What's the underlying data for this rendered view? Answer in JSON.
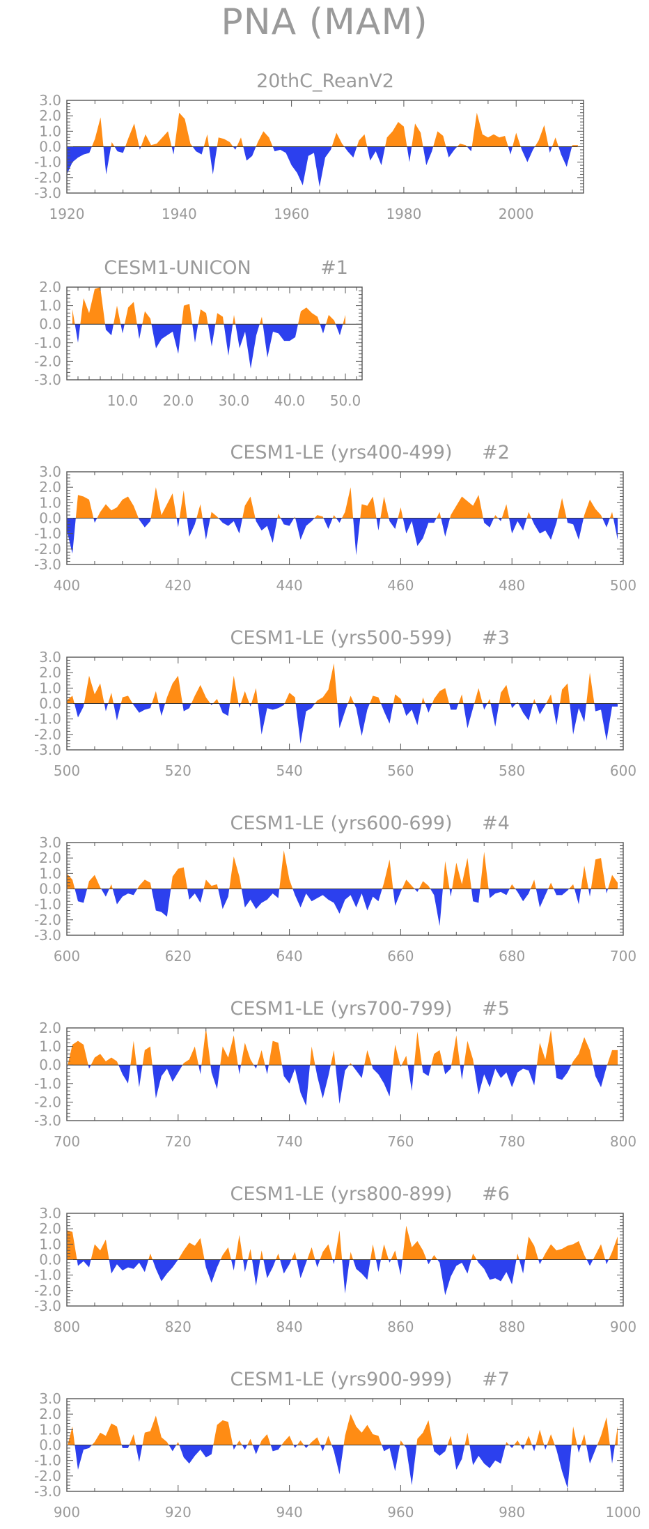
{
  "page": {
    "title": "PNA (MAM)"
  },
  "colors": {
    "positive": "#ff8c14",
    "negative": "#2c40ee",
    "text": "#9a9a9a",
    "axis": "#555555"
  },
  "chart_data": [
    {
      "type": "area",
      "title": "20thC_ReanV2",
      "tag": "",
      "x_start": 1920,
      "xlim": [
        1920,
        2012
      ],
      "ylim": [
        -3.0,
        3.0
      ],
      "xticks": [
        1920,
        1940,
        1960,
        1980,
        2000
      ],
      "xtick_labels": [
        "1920",
        "1940",
        "1960",
        "1980",
        "2000"
      ],
      "yticks": [
        3.0,
        2.0,
        1.0,
        0.0,
        -1.0,
        -2.0,
        -3.0
      ],
      "ytick_labels": [
        "3.0",
        "2.0",
        "1.0",
        "0.0",
        "-1.0",
        "-2.0",
        "-3.0"
      ],
      "values": [
        -1.8,
        -1.0,
        -0.7,
        -0.5,
        -0.4,
        0.5,
        1.9,
        -1.8,
        0.3,
        -0.3,
        -0.4,
        0.6,
        1.5,
        -0.2,
        0.8,
        0.1,
        0.2,
        0.6,
        1.0,
        -0.5,
        2.2,
        1.8,
        0.2,
        -0.3,
        -0.5,
        0.8,
        -1.8,
        0.6,
        0.5,
        0.3,
        -0.2,
        0.6,
        -0.9,
        -0.6,
        0.3,
        1.0,
        0.6,
        -0.3,
        -0.2,
        -0.4,
        -1.2,
        -1.7,
        -2.5,
        -0.6,
        -0.4,
        -2.6,
        -0.7,
        -0.2,
        0.9,
        0.2,
        -0.3,
        -0.7,
        0.4,
        0.8,
        -0.9,
        -0.3,
        -1.2,
        0.6,
        1.0,
        1.6,
        1.3,
        -1.0,
        1.5,
        0.9,
        -1.2,
        -0.3,
        1.0,
        0.7,
        -0.7,
        -0.2,
        0.2,
        0.1,
        -0.3,
        2.2,
        0.8,
        0.6,
        0.8,
        0.6,
        0.7,
        -0.5,
        0.9,
        -0.2,
        -1.0,
        -0.2,
        0.4,
        1.4,
        -0.4,
        0.6,
        -0.5,
        -1.3,
        0.1,
        0.1
      ]
    },
    {
      "type": "area",
      "title": "CESM1-UNICON",
      "tag": "#1",
      "x_start": 1,
      "xlim": [
        0,
        53
      ],
      "ylim": [
        -3.0,
        2.0
      ],
      "xticks": [
        10,
        20,
        30,
        40,
        50
      ],
      "xtick_labels": [
        "10.0",
        "20.0",
        "30.0",
        "40.0",
        "50.0"
      ],
      "yticks": [
        2.0,
        1.0,
        0.0,
        -1.0,
        -2.0,
        -3.0
      ],
      "ytick_labels": [
        "2.0",
        "1.0",
        "0.0",
        "-1.0",
        "-2.0",
        "-3.0"
      ],
      "values": [
        0.8,
        -1.0,
        1.4,
        0.6,
        1.9,
        2.0,
        -0.3,
        -0.6,
        1.0,
        -0.5,
        0.9,
        1.2,
        -0.8,
        0.7,
        0.3,
        -1.3,
        -0.8,
        -0.6,
        -0.4,
        -1.6,
        1.0,
        1.1,
        -1.0,
        0.8,
        0.6,
        -1.2,
        0.6,
        0.4,
        -1.7,
        0.5,
        -1.3,
        -0.4,
        -2.4,
        -0.6,
        0.4,
        -1.8,
        -0.4,
        -0.5,
        -0.9,
        -0.9,
        -0.7,
        0.7,
        0.9,
        0.6,
        0.4,
        -0.5,
        0.5,
        0.2,
        -0.6,
        0.5
      ]
    },
    {
      "type": "area",
      "title": "CESM1-LE (yrs400-499)",
      "tag": "#2",
      "x_start": 400,
      "xlim": [
        400,
        500
      ],
      "ylim": [
        -3.0,
        3.0
      ],
      "xticks": [
        400,
        420,
        440,
        460,
        480,
        500
      ],
      "xtick_labels": [
        "400",
        "420",
        "440",
        "460",
        "480",
        "500"
      ],
      "yticks": [
        3.0,
        2.0,
        1.0,
        0.0,
        -1.0,
        -2.0,
        -3.0
      ],
      "ytick_labels": [
        "3.0",
        "2.0",
        "1.0",
        "0.0",
        "-1.0",
        "-2.0",
        "-3.0"
      ],
      "values": [
        -0.8,
        -2.3,
        1.5,
        1.4,
        1.2,
        -0.3,
        0.4,
        0.9,
        0.5,
        0.7,
        1.2,
        1.4,
        0.8,
        -0.1,
        -0.6,
        -0.2,
        2.0,
        0.2,
        0.9,
        1.6,
        -0.6,
        1.8,
        -1.2,
        -0.4,
        0.9,
        -1.4,
        0.4,
        0.1,
        -0.3,
        -0.5,
        -0.2,
        -1.0,
        0.8,
        1.4,
        -0.2,
        -0.8,
        -0.5,
        -1.6,
        0.3,
        -0.4,
        -0.5,
        0.1,
        -1.4,
        -0.5,
        -0.2,
        0.2,
        0.1,
        -0.7,
        0.2,
        -0.3,
        0.4,
        2.0,
        -2.4,
        0.9,
        0.8,
        1.4,
        -0.8,
        1.4,
        -0.2,
        -0.7,
        0.7,
        -1.0,
        -0.2,
        -1.8,
        -1.3,
        -0.3,
        -0.3,
        0.4,
        -1.2,
        0.2,
        0.8,
        1.4,
        1.1,
        0.8,
        1.5,
        -0.3,
        -0.6,
        0.2,
        -0.2,
        0.9,
        -1.0,
        -0.2,
        -0.8,
        0.4,
        -0.4,
        -1.0,
        -0.8,
        -1.4,
        -0.3,
        1.3,
        -0.3,
        -0.4,
        -1.4,
        0.2,
        1.2,
        0.6,
        0.2,
        -0.6,
        0.4,
        -1.4
      ]
    },
    {
      "type": "area",
      "title": "CESM1-LE (yrs500-599)",
      "tag": "#3",
      "x_start": 500,
      "xlim": [
        500,
        600
      ],
      "ylim": [
        -3.0,
        3.0
      ],
      "xticks": [
        500,
        520,
        540,
        560,
        580,
        600
      ],
      "xtick_labels": [
        "500",
        "520",
        "540",
        "560",
        "580",
        "600"
      ],
      "yticks": [
        3.0,
        2.0,
        1.0,
        0.0,
        -1.0,
        -2.0,
        -3.0
      ],
      "ytick_labels": [
        "3.0",
        "2.0",
        "1.0",
        "0.0",
        "-1.0",
        "-2.0",
        "-3.0"
      ],
      "values": [
        0.2,
        0.5,
        -0.9,
        -0.2,
        1.8,
        0.6,
        1.3,
        -0.5,
        0.7,
        -1.1,
        0.4,
        0.5,
        -0.1,
        -0.6,
        -0.4,
        -0.3,
        0.8,
        -0.8,
        0.4,
        1.3,
        1.8,
        -0.5,
        -0.3,
        0.5,
        1.2,
        0.4,
        -0.1,
        0.3,
        -0.6,
        -0.8,
        1.8,
        -0.3,
        0.8,
        -0.2,
        1.0,
        -2.0,
        -0.3,
        -0.4,
        -0.3,
        -0.1,
        0.7,
        0.4,
        -2.6,
        -0.5,
        -0.3,
        0.2,
        0.4,
        0.9,
        2.6,
        -1.6,
        -0.5,
        0.5,
        -0.3,
        -2.1,
        -0.4,
        0.5,
        0.4,
        -0.5,
        -1.3,
        0.6,
        0.3,
        -0.8,
        -0.4,
        -1.4,
        0.4,
        -0.6,
        0.3,
        0.8,
        1.0,
        -0.4,
        -0.4,
        0.6,
        -1.6,
        -0.3,
        1.0,
        -0.4,
        0.3,
        -1.5,
        0.7,
        1.2,
        -0.3,
        0.1,
        -0.6,
        -1.1,
        0.3,
        -0.7,
        -0.1,
        0.6,
        -1.4,
        0.9,
        1.3,
        -2.0,
        -0.3,
        -1.2,
        2.0,
        -0.5,
        -0.4,
        -2.4,
        -0.2,
        -0.2
      ]
    },
    {
      "type": "area",
      "title": "CESM1-LE (yrs600-699)",
      "tag": "#4",
      "x_start": 600,
      "xlim": [
        600,
        700
      ],
      "ylim": [
        -3.0,
        3.0
      ],
      "xticks": [
        600,
        620,
        640,
        660,
        680,
        700
      ],
      "xtick_labels": [
        "600",
        "620",
        "640",
        "660",
        "680",
        "700"
      ],
      "yticks": [
        3.0,
        2.0,
        1.0,
        0.0,
        -1.0,
        -2.0,
        -3.0
      ],
      "ytick_labels": [
        "3.0",
        "2.0",
        "1.0",
        "0.0",
        "-1.0",
        "-2.0",
        "-3.0"
      ],
      "values": [
        1.0,
        0.6,
        -0.8,
        -0.9,
        0.5,
        0.9,
        0.1,
        -0.5,
        0.3,
        -1.0,
        -0.5,
        -0.3,
        -0.4,
        0.2,
        0.6,
        0.4,
        -1.4,
        -1.5,
        -1.8,
        0.8,
        1.3,
        1.4,
        -0.7,
        -0.3,
        -0.9,
        0.6,
        0.2,
        0.3,
        -1.3,
        -0.5,
        2.1,
        0.8,
        -1.2,
        -0.7,
        -1.3,
        -0.9,
        -0.7,
        -0.3,
        -0.6,
        2.5,
        0.6,
        -0.4,
        -1.2,
        -0.3,
        -0.8,
        -0.6,
        -0.4,
        -0.7,
        -0.9,
        -1.6,
        -0.7,
        -0.4,
        -1.2,
        -0.3,
        -1.4,
        -0.5,
        -0.8,
        0.4,
        1.9,
        -1.1,
        -0.2,
        0.6,
        0.2,
        -0.2,
        0.5,
        0.2,
        -0.4,
        -2.4,
        1.8,
        -0.5,
        1.7,
        0.3,
        2.0,
        -0.8,
        -0.9,
        2.4,
        -0.6,
        -0.3,
        -0.2,
        -0.4,
        0.3,
        -0.2,
        -0.8,
        -0.3,
        0.6,
        -1.2,
        -0.4,
        0.4,
        -0.4,
        -0.4,
        -0.1,
        0.3,
        -1.0,
        1.5,
        -0.5,
        1.9,
        2.0,
        -0.3,
        0.9,
        0.4
      ]
    },
    {
      "type": "area",
      "title": "CESM1-LE (yrs700-799)",
      "tag": "#5",
      "x_start": 700,
      "xlim": [
        700,
        800
      ],
      "ylim": [
        -3.0,
        2.0
      ],
      "xticks": [
        700,
        720,
        740,
        760,
        780,
        800
      ],
      "xtick_labels": [
        "700",
        "720",
        "740",
        "760",
        "780",
        "800"
      ],
      "yticks": [
        2.0,
        1.0,
        0.0,
        -1.0,
        -2.0,
        -3.0
      ],
      "ytick_labels": [
        "2.0",
        "1.0",
        "0.0",
        "-1.0",
        "-2.0",
        "-3.0"
      ],
      "values": [
        -0.2,
        1.1,
        1.3,
        1.1,
        -0.2,
        0.4,
        0.6,
        0.2,
        0.4,
        0.2,
        -0.5,
        -1.0,
        1.3,
        -1.2,
        0.8,
        1.0,
        -1.8,
        -0.6,
        -0.2,
        -0.9,
        -0.4,
        0.1,
        0.3,
        1.0,
        -0.5,
        2.0,
        -0.4,
        -1.3,
        1.0,
        0.4,
        1.6,
        -0.5,
        1.2,
        0.3,
        -0.2,
        0.8,
        -0.5,
        1.3,
        1.2,
        -0.6,
        -1.0,
        -0.2,
        -1.5,
        -2.2,
        1.0,
        -0.6,
        -1.8,
        -0.6,
        0.8,
        -2.1,
        -0.3,
        0.1,
        -0.3,
        -0.7,
        0.8,
        -0.2,
        -0.5,
        -1.0,
        -1.7,
        1.1,
        -0.1,
        0.5,
        -1.4,
        1.8,
        -0.4,
        -0.6,
        0.6,
        0.8,
        -0.5,
        -0.2,
        1.6,
        -0.8,
        1.3,
        0.3,
        -1.6,
        -0.5,
        -1.2,
        -0.2,
        -0.7,
        -0.4,
        -1.2,
        -0.4,
        -0.2,
        -0.3,
        -1.1,
        1.2,
        0.3,
        1.9,
        -0.7,
        -0.8,
        -0.4,
        0.2,
        0.6,
        1.5,
        0.8,
        -0.6,
        -1.2,
        -0.1,
        0.8,
        0.8
      ]
    },
    {
      "type": "area",
      "title": "CESM1-LE (yrs800-899)",
      "tag": "#6",
      "x_start": 800,
      "xlim": [
        800,
        900
      ],
      "ylim": [
        -3.0,
        3.0
      ],
      "xticks": [
        800,
        820,
        840,
        860,
        880,
        900
      ],
      "xtick_labels": [
        "800",
        "820",
        "840",
        "860",
        "880",
        "900"
      ],
      "yticks": [
        3.0,
        2.0,
        1.0,
        0.0,
        -1.0,
        -2.0,
        -3.0
      ],
      "ytick_labels": [
        "3.0",
        "2.0",
        "1.0",
        "0.0",
        "-1.0",
        "-2.0",
        "-3.0"
      ],
      "values": [
        1.9,
        1.8,
        -0.4,
        -0.1,
        -0.5,
        1.0,
        0.6,
        1.3,
        -0.9,
        -0.3,
        -0.7,
        -0.5,
        -0.6,
        -0.2,
        -0.8,
        0.4,
        -0.6,
        -1.4,
        -0.9,
        -0.5,
        0.0,
        0.6,
        1.1,
        0.9,
        1.4,
        -0.5,
        -1.5,
        -0.5,
        0.3,
        0.8,
        -0.7,
        1.6,
        -0.8,
        0.7,
        -1.7,
        0.6,
        -1.2,
        -0.5,
        0.4,
        -0.9,
        -0.3,
        0.5,
        -1.2,
        -0.2,
        0.8,
        -0.5,
        0.5,
        1.0,
        -0.3,
        1.9,
        -2.2,
        0.5,
        -0.6,
        -0.9,
        -1.3,
        1.0,
        -0.8,
        1.0,
        -0.2,
        0.6,
        -1.0,
        2.2,
        0.8,
        1.2,
        0.6,
        -0.3,
        0.3,
        -0.2,
        -2.3,
        -1.1,
        -0.4,
        -0.2,
        -0.9,
        0.4,
        -0.2,
        -0.6,
        -1.3,
        -1.2,
        -1.4,
        -0.8,
        -1.6,
        0.4,
        -0.9,
        1.5,
        0.9,
        -0.3,
        0.4,
        1.0,
        0.6,
        0.7,
        0.9,
        1.0,
        1.2,
        0.3,
        -0.4,
        0.3,
        1.0,
        -0.3,
        0.5,
        1.5
      ]
    },
    {
      "type": "area",
      "title": "CESM1-LE (yrs900-999)",
      "tag": "#7",
      "x_start": 900,
      "xlim": [
        900,
        1000
      ],
      "ylim": [
        -3.0,
        3.0
      ],
      "xticks": [
        900,
        920,
        940,
        960,
        980,
        1000
      ],
      "xtick_labels": [
        "900",
        "920",
        "940",
        "960",
        "980",
        "1000"
      ],
      "yticks": [
        3.0,
        2.0,
        1.0,
        0.0,
        -1.0,
        -2.0,
        -3.0
      ],
      "ytick_labels": [
        "3.0",
        "2.0",
        "1.0",
        "0.0",
        "-1.0",
        "-2.0",
        "-3.0"
      ],
      "values": [
        -0.2,
        1.2,
        -1.6,
        -0.3,
        -0.2,
        0.2,
        0.8,
        0.6,
        1.4,
        1.2,
        -0.2,
        -0.2,
        0.7,
        -1.1,
        0.8,
        0.9,
        1.9,
        0.5,
        0.2,
        -0.4,
        0.2,
        -0.8,
        -1.2,
        -0.7,
        -0.3,
        -0.8,
        -0.6,
        1.3,
        1.6,
        1.5,
        -0.3,
        0.3,
        -0.3,
        0.4,
        -0.6,
        0.3,
        0.7,
        -0.4,
        -0.3,
        0.2,
        0.6,
        -0.2,
        0.3,
        -0.2,
        0.2,
        0.5,
        -0.4,
        0.6,
        -0.4,
        -1.9,
        0.6,
        2.0,
        1.2,
        0.8,
        1.3,
        0.7,
        0.6,
        -0.4,
        -0.2,
        -1.7,
        0.3,
        -0.2,
        -2.6,
        0.4,
        0.8,
        1.6,
        -0.4,
        -0.7,
        -0.4,
        0.6,
        -1.6,
        -0.9,
        0.8,
        -1.3,
        -0.7,
        -1.2,
        -1.5,
        -1.0,
        -1.2,
        0.2,
        -0.2,
        0.3,
        -0.3,
        0.6,
        -0.4,
        1.0,
        -0.3,
        0.7,
        -0.3,
        -1.7,
        -2.8,
        1.2,
        -0.5,
        0.7,
        -1.2,
        -0.3,
        0.6,
        1.8,
        -1.2,
        1.2
      ]
    }
  ]
}
